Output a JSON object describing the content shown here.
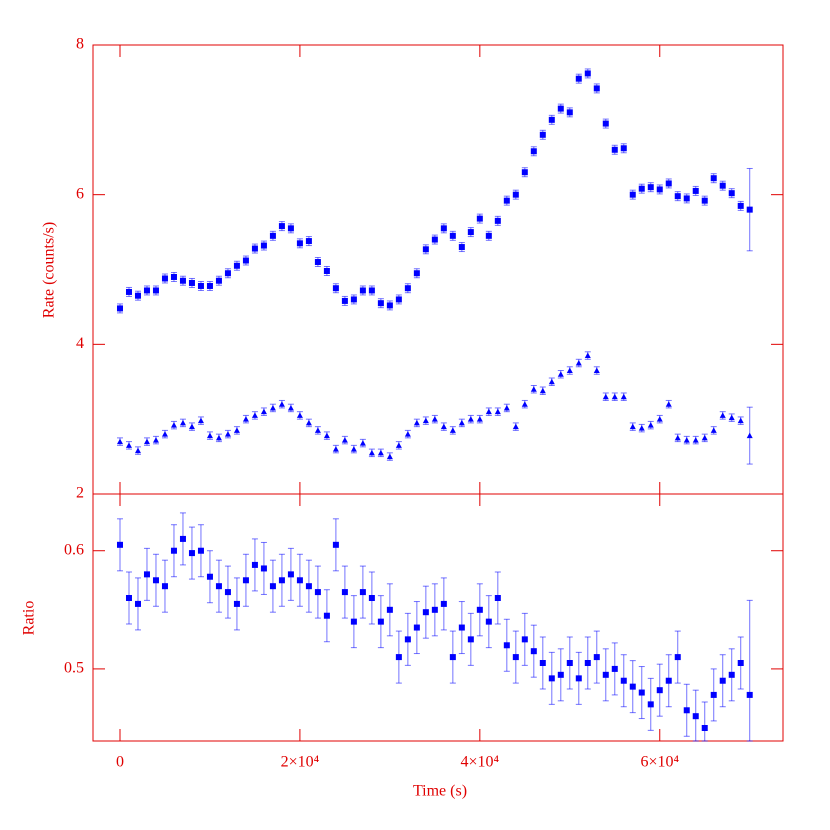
{
  "chart_data": [
    {
      "type": "scatter",
      "ylabel": "Rate (counts/s)",
      "ylim": [
        2,
        8
      ],
      "yticks": [
        2,
        4,
        6,
        8
      ],
      "xlim": [
        -3000,
        73700
      ],
      "xticks": [
        0,
        20000,
        40000,
        60000
      ],
      "x": [
        0,
        1000,
        2000,
        3000,
        4000,
        5000,
        6000,
        7000,
        8000,
        9000,
        10000,
        11000,
        12000,
        13000,
        14000,
        15000,
        16000,
        17000,
        18000,
        19000,
        20000,
        21000,
        22000,
        23000,
        24000,
        25000,
        26000,
        27000,
        28000,
        29000,
        30000,
        31000,
        32000,
        33000,
        34000,
        35000,
        36000,
        37000,
        38000,
        39000,
        40000,
        41000,
        42000,
        43000,
        44000,
        45000,
        46000,
        47000,
        48000,
        49000,
        50000,
        51000,
        52000,
        53000,
        54000,
        55000,
        56000,
        57000,
        58000,
        59000,
        60000,
        61000,
        62000,
        63000,
        64000,
        65000,
        66000,
        67000,
        68000,
        69000,
        70000
      ],
      "series": [
        {
          "color": "#0000ff",
          "marker": "square",
          "values": [
            4.48,
            4.7,
            4.65,
            4.72,
            4.72,
            4.88,
            4.9,
            4.85,
            4.82,
            4.78,
            4.78,
            4.85,
            4.95,
            5.05,
            5.12,
            5.28,
            5.32,
            5.45,
            5.58,
            5.55,
            5.35,
            5.38,
            5.1,
            4.98,
            4.75,
            4.58,
            4.6,
            4.72,
            4.72,
            4.55,
            4.52,
            4.6,
            4.75,
            4.95,
            5.27,
            5.4,
            5.55,
            5.45,
            5.3,
            5.5,
            5.68,
            5.45,
            5.65,
            5.92,
            6.0,
            6.3,
            6.58,
            6.8,
            7.0,
            7.15,
            7.1,
            7.55,
            7.62,
            7.42,
            6.95,
            6.6,
            6.62,
            6.0,
            6.08,
            6.1,
            6.07,
            6.15,
            5.98,
            5.95,
            6.05,
            5.92,
            6.22,
            6.12,
            6.02,
            5.85,
            5.8
          ],
          "errors": [
            0.06,
            0.06,
            0.06,
            0.06,
            0.06,
            0.06,
            0.06,
            0.06,
            0.06,
            0.06,
            0.06,
            0.06,
            0.06,
            0.06,
            0.06,
            0.06,
            0.06,
            0.06,
            0.06,
            0.06,
            0.06,
            0.06,
            0.06,
            0.06,
            0.06,
            0.06,
            0.06,
            0.06,
            0.06,
            0.06,
            0.06,
            0.06,
            0.06,
            0.06,
            0.06,
            0.06,
            0.06,
            0.06,
            0.06,
            0.06,
            0.06,
            0.06,
            0.06,
            0.06,
            0.06,
            0.06,
            0.06,
            0.06,
            0.06,
            0.06,
            0.06,
            0.06,
            0.06,
            0.06,
            0.06,
            0.06,
            0.06,
            0.06,
            0.06,
            0.06,
            0.06,
            0.06,
            0.06,
            0.06,
            0.06,
            0.06,
            0.06,
            0.06,
            0.06,
            0.06,
            0.55
          ]
        },
        {
          "color": "#0000ff",
          "marker": "triangle",
          "values": [
            2.7,
            2.65,
            2.58,
            2.7,
            2.72,
            2.8,
            2.92,
            2.95,
            2.9,
            2.98,
            2.78,
            2.75,
            2.8,
            2.85,
            3.0,
            3.05,
            3.1,
            3.15,
            3.2,
            3.15,
            3.05,
            2.95,
            2.85,
            2.78,
            2.6,
            2.72,
            2.6,
            2.68,
            2.55,
            2.55,
            2.5,
            2.65,
            2.8,
            2.95,
            2.98,
            3.0,
            2.9,
            2.85,
            2.95,
            3.0,
            3.0,
            3.1,
            3.1,
            3.15,
            2.9,
            3.2,
            3.4,
            3.38,
            3.5,
            3.6,
            3.65,
            3.75,
            3.85,
            3.65,
            3.3,
            3.3,
            3.3,
            2.9,
            2.88,
            2.92,
            3.0,
            3.2,
            2.75,
            2.72,
            2.72,
            2.75,
            2.85,
            3.05,
            3.02,
            2.98,
            2.78
          ],
          "errors": [
            0.05,
            0.05,
            0.05,
            0.05,
            0.05,
            0.05,
            0.05,
            0.05,
            0.05,
            0.05,
            0.05,
            0.05,
            0.05,
            0.05,
            0.05,
            0.05,
            0.05,
            0.05,
            0.05,
            0.05,
            0.05,
            0.05,
            0.05,
            0.05,
            0.05,
            0.05,
            0.05,
            0.05,
            0.05,
            0.05,
            0.05,
            0.05,
            0.05,
            0.05,
            0.05,
            0.05,
            0.05,
            0.05,
            0.05,
            0.05,
            0.05,
            0.05,
            0.05,
            0.05,
            0.05,
            0.05,
            0.05,
            0.05,
            0.05,
            0.05,
            0.05,
            0.05,
            0.05,
            0.05,
            0.05,
            0.05,
            0.05,
            0.05,
            0.05,
            0.05,
            0.05,
            0.05,
            0.05,
            0.05,
            0.05,
            0.05,
            0.05,
            0.05,
            0.05,
            0.05,
            0.38
          ]
        }
      ]
    },
    {
      "type": "scatter",
      "ylabel": "Ratio",
      "xlabel": "Time (s)",
      "ylim": [
        0.439,
        0.648
      ],
      "yticks": [
        0.5,
        0.6
      ],
      "xlim": [
        -3000,
        73700
      ],
      "xticks": [
        0,
        {
          "value": 20000,
          "label": "2×10⁴"
        },
        {
          "value": 40000,
          "label": "4×10⁴"
        },
        {
          "value": 60000,
          "label": "6×10⁴"
        }
      ],
      "x": [
        0,
        1000,
        2000,
        3000,
        4000,
        5000,
        6000,
        7000,
        8000,
        9000,
        10000,
        11000,
        12000,
        13000,
        14000,
        15000,
        16000,
        17000,
        18000,
        19000,
        20000,
        21000,
        22000,
        23000,
        24000,
        25000,
        26000,
        27000,
        28000,
        29000,
        30000,
        31000,
        32000,
        33000,
        34000,
        35000,
        36000,
        37000,
        38000,
        39000,
        40000,
        41000,
        42000,
        43000,
        44000,
        45000,
        46000,
        47000,
        48000,
        49000,
        50000,
        51000,
        52000,
        53000,
        54000,
        55000,
        56000,
        57000,
        58000,
        59000,
        60000,
        61000,
        62000,
        63000,
        64000,
        65000,
        66000,
        67000,
        68000,
        69000,
        70000
      ],
      "series": [
        {
          "color": "#0000ff",
          "marker": "square",
          "values": [
            0.605,
            0.56,
            0.555,
            0.58,
            0.575,
            0.57,
            0.6,
            0.61,
            0.598,
            0.6,
            0.578,
            0.57,
            0.565,
            0.555,
            0.575,
            0.588,
            0.585,
            0.57,
            0.575,
            0.58,
            0.575,
            0.57,
            0.565,
            0.545,
            0.605,
            0.565,
            0.54,
            0.565,
            0.56,
            0.54,
            0.55,
            0.51,
            0.525,
            0.535,
            0.548,
            0.55,
            0.555,
            0.51,
            0.535,
            0.525,
            0.55,
            0.54,
            0.56,
            0.52,
            0.51,
            0.525,
            0.515,
            0.505,
            0.492,
            0.495,
            0.505,
            0.492,
            0.505,
            0.51,
            0.495,
            0.5,
            0.49,
            0.485,
            0.48,
            0.47,
            0.482,
            0.49,
            0.51,
            0.465,
            0.46,
            0.45,
            0.478,
            0.49,
            0.495,
            0.505,
            0.478
          ],
          "errors": [
            0.022,
            0.022,
            0.022,
            0.022,
            0.022,
            0.022,
            0.022,
            0.022,
            0.022,
            0.022,
            0.022,
            0.022,
            0.022,
            0.022,
            0.022,
            0.022,
            0.022,
            0.022,
            0.022,
            0.022,
            0.022,
            0.022,
            0.022,
            0.022,
            0.022,
            0.022,
            0.022,
            0.022,
            0.022,
            0.022,
            0.022,
            0.022,
            0.022,
            0.022,
            0.022,
            0.022,
            0.022,
            0.022,
            0.022,
            0.022,
            0.022,
            0.022,
            0.022,
            0.022,
            0.022,
            0.022,
            0.022,
            0.022,
            0.022,
            0.022,
            0.022,
            0.022,
            0.022,
            0.022,
            0.022,
            0.022,
            0.022,
            0.022,
            0.022,
            0.022,
            0.022,
            0.022,
            0.022,
            0.022,
            0.022,
            0.022,
            0.022,
            0.022,
            0.022,
            0.022,
            0.08
          ]
        }
      ]
    }
  ]
}
